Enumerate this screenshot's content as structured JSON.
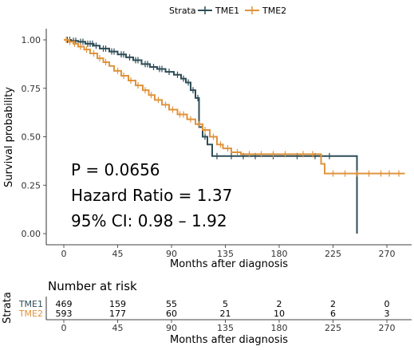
{
  "chart_data": {
    "type": "line",
    "subtype": "kaplan-meier",
    "legend": {
      "title": "Strata",
      "placement": "top",
      "entries": [
        {
          "name": "TME1",
          "color": "#2e4d57"
        },
        {
          "name": "TME2",
          "color": "#e0933c"
        }
      ]
    },
    "xlabel": "Months after diagnosis",
    "ylabel": "Survival probability",
    "xlim": [
      0,
      285
    ],
    "ylim": [
      0,
      1
    ],
    "xticks": [
      0,
      45,
      90,
      135,
      180,
      225,
      270
    ],
    "yticks": [
      0.0,
      0.25,
      0.5,
      0.75,
      1.0
    ],
    "ytick_labels": [
      "0.00",
      "0.25",
      "0.50",
      "0.75",
      "1.00"
    ],
    "annotations": [
      "P = 0.0656",
      "Hazard Ratio = 1.37",
      "95% CI: 0.98 – 1.92"
    ],
    "series": [
      {
        "name": "TME1",
        "color": "#2e4d57",
        "steps": [
          [
            0,
            1.0
          ],
          [
            6,
            0.995
          ],
          [
            12,
            0.99
          ],
          [
            18,
            0.98
          ],
          [
            25,
            0.97
          ],
          [
            30,
            0.955
          ],
          [
            38,
            0.94
          ],
          [
            45,
            0.925
          ],
          [
            52,
            0.91
          ],
          [
            58,
            0.895
          ],
          [
            65,
            0.875
          ],
          [
            72,
            0.86
          ],
          [
            78,
            0.85
          ],
          [
            85,
            0.835
          ],
          [
            92,
            0.82
          ],
          [
            98,
            0.8
          ],
          [
            102,
            0.78
          ],
          [
            106,
            0.74
          ],
          [
            110,
            0.7
          ],
          [
            113,
            0.55
          ],
          [
            116,
            0.5
          ],
          [
            120,
            0.46
          ],
          [
            124,
            0.4
          ],
          [
            245,
            0.0
          ]
        ],
        "censor_x": [
          3,
          5,
          8,
          10,
          14,
          16,
          20,
          22,
          24,
          27,
          33,
          35,
          40,
          42,
          48,
          50,
          55,
          60,
          62,
          68,
          70,
          75,
          80,
          82,
          88,
          95,
          100,
          104,
          108,
          112,
          118,
          128,
          140,
          150,
          160,
          175,
          195,
          210,
          222
        ]
      },
      {
        "name": "TME2",
        "color": "#e0933c",
        "steps": [
          [
            0,
            1.0
          ],
          [
            4,
            0.99
          ],
          [
            8,
            0.98
          ],
          [
            12,
            0.965
          ],
          [
            17,
            0.95
          ],
          [
            22,
            0.93
          ],
          [
            28,
            0.905
          ],
          [
            33,
            0.885
          ],
          [
            38,
            0.865
          ],
          [
            42,
            0.84
          ],
          [
            48,
            0.815
          ],
          [
            54,
            0.79
          ],
          [
            60,
            0.765
          ],
          [
            66,
            0.74
          ],
          [
            71,
            0.715
          ],
          [
            76,
            0.69
          ],
          [
            82,
            0.665
          ],
          [
            88,
            0.64
          ],
          [
            95,
            0.615
          ],
          [
            103,
            0.59
          ],
          [
            110,
            0.565
          ],
          [
            116,
            0.535
          ],
          [
            122,
            0.5
          ],
          [
            128,
            0.46
          ],
          [
            133,
            0.44
          ],
          [
            140,
            0.42
          ],
          [
            148,
            0.41
          ],
          [
            215,
            0.36
          ],
          [
            218,
            0.31
          ],
          [
            285,
            0.31
          ]
        ],
        "censor_x": [
          2,
          5,
          9,
          14,
          19,
          25,
          30,
          35,
          45,
          50,
          56,
          62,
          68,
          73,
          79,
          85,
          91,
          97,
          100,
          106,
          113,
          118,
          125,
          131,
          137,
          145,
          155,
          165,
          175,
          185,
          200,
          208,
          225,
          235,
          245,
          255,
          265,
          272,
          280
        ]
      }
    ],
    "risk_table": {
      "title": "Number at risk",
      "ylabel": "Strata",
      "times": [
        0,
        45,
        90,
        135,
        180,
        225,
        270
      ],
      "time_labels": [
        "0",
        "45",
        "90",
        "135",
        "180",
        "225",
        "270"
      ],
      "xlabel": "Months after diagnosis",
      "rows": [
        {
          "name": "TME1",
          "color": "#2e4d57",
          "counts": [
            "469",
            "159",
            "55",
            "5",
            "2",
            "2",
            "0"
          ]
        },
        {
          "name": "TME2",
          "color": "#e0933c",
          "counts": [
            "593",
            "177",
            "60",
            "21",
            "10",
            "6",
            "3"
          ]
        }
      ]
    }
  }
}
